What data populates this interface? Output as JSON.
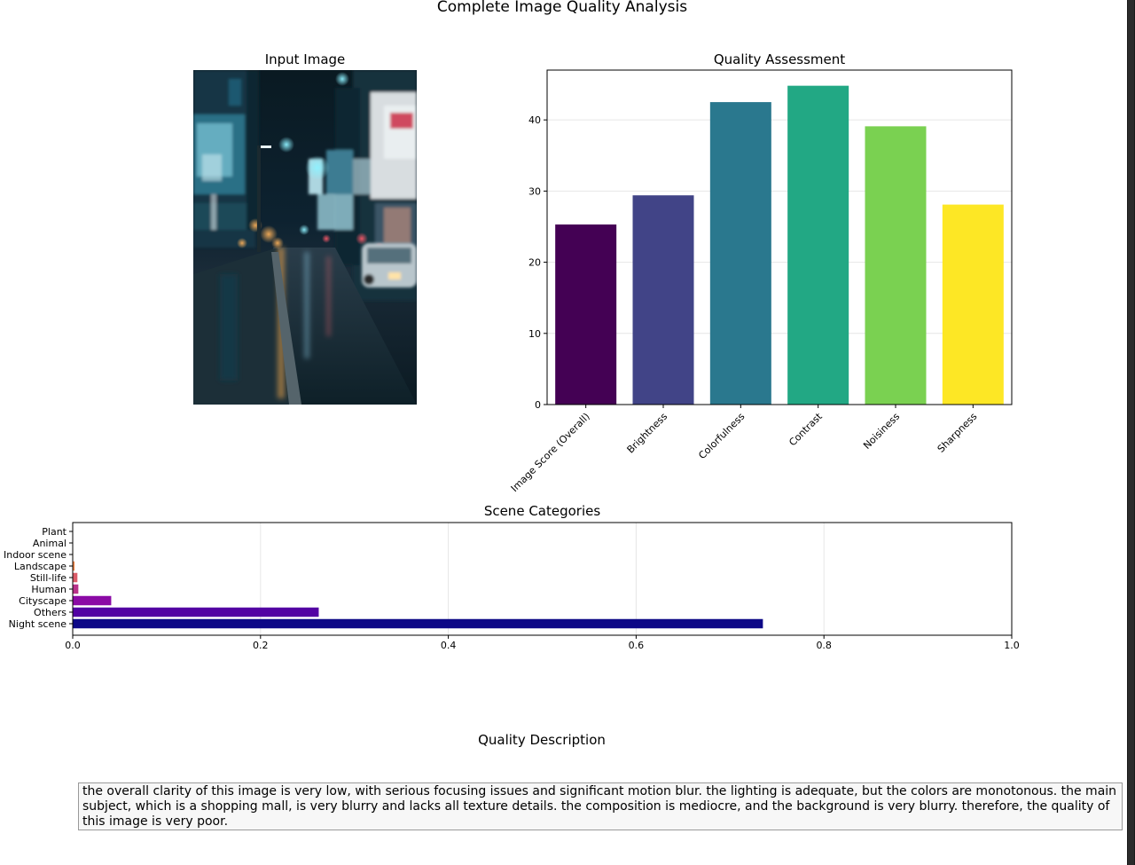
{
  "figure": {
    "suptitle": "Complete Image Quality Analysis",
    "image_panel_title": "Input Image",
    "description_title": "Quality Description",
    "description_text": "the overall clarity of this image is very low, with serious focusing issues and significant motion blur. the lighting is adequate, but the colors are monotonous. the main subject, which is a shopping mall, is very blurry and lacks all texture details. the composition is mediocre, and the background is very blurry. therefore, the quality of this image is very poor."
  },
  "chart_data": [
    {
      "type": "bar",
      "title": "Quality Assessment",
      "categories": [
        "Image Score (Overall)",
        "Brightness",
        "Colorfulness",
        "Contrast",
        "Noisiness",
        "Sharpness"
      ],
      "values": [
        25.3,
        29.4,
        42.5,
        44.8,
        39.1,
        28.1
      ],
      "colors": [
        "#440154",
        "#414487",
        "#2a788e",
        "#22a884",
        "#7ad151",
        "#fde725"
      ],
      "yticks": [
        0,
        10,
        20,
        30,
        40
      ],
      "ylim": [
        0,
        47
      ],
      "grid": "y",
      "xlabel": "",
      "ylabel": ""
    },
    {
      "type": "bar",
      "orientation": "horizontal",
      "title": "Scene Categories",
      "categories": [
        "Night scene",
        "Others",
        "Cityscape",
        "Human",
        "Still-life",
        "Landscape",
        "Indoor scene",
        "Animal",
        "Plant"
      ],
      "values": [
        0.735,
        0.262,
        0.041,
        0.006,
        0.005,
        0.002,
        0.0005,
        0.0003,
        0.0002
      ],
      "colors": [
        "#0d0887",
        "#5302a3",
        "#8b0aa5",
        "#b83289",
        "#db5c68",
        "#f48849",
        "#febc2a",
        "#f0f921",
        "#f0f921"
      ],
      "xticks": [
        "0.0",
        "0.2",
        "0.4",
        "0.6",
        "0.8",
        "1.0"
      ],
      "xlim": [
        0,
        1
      ],
      "grid": "x",
      "xlabel": "",
      "ylabel": ""
    }
  ]
}
